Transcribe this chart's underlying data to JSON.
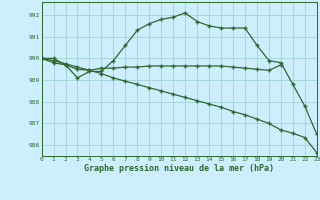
{
  "line1": {
    "x": [
      0,
      1,
      2,
      3,
      4,
      5,
      6,
      7,
      8,
      9,
      10,
      11,
      12,
      13,
      14,
      15,
      16,
      17,
      18,
      19,
      20,
      21,
      22,
      23
    ],
    "y": [
      990.0,
      990.0,
      989.7,
      989.1,
      989.4,
      989.4,
      989.9,
      990.6,
      991.3,
      991.6,
      991.8,
      991.9,
      992.1,
      991.7,
      991.5,
      991.4,
      991.4,
      991.4,
      990.6,
      989.9,
      989.8,
      988.8,
      987.8,
      986.5
    ]
  },
  "line2": {
    "x": [
      0,
      1,
      2,
      3,
      4,
      5,
      6,
      7,
      8,
      9,
      10,
      11,
      12,
      13,
      14,
      15,
      16,
      17,
      18,
      19,
      20
    ],
    "y": [
      990.0,
      989.8,
      989.7,
      989.5,
      989.45,
      989.55,
      989.55,
      989.6,
      989.6,
      989.65,
      989.65,
      989.65,
      989.65,
      989.65,
      989.65,
      989.65,
      989.6,
      989.55,
      989.5,
      989.45,
      989.7
    ]
  },
  "line3": {
    "x": [
      0,
      1,
      2,
      3,
      4,
      5,
      6,
      7,
      8,
      9,
      10,
      11,
      12,
      13,
      14,
      15,
      16,
      17,
      18,
      19,
      20,
      21,
      22,
      23
    ],
    "y": [
      990.0,
      989.9,
      989.75,
      989.6,
      989.45,
      989.3,
      989.1,
      988.95,
      988.8,
      988.65,
      988.5,
      988.35,
      988.2,
      988.05,
      987.9,
      987.75,
      987.55,
      987.4,
      987.2,
      987.0,
      986.7,
      986.55,
      986.35,
      985.65
    ]
  },
  "line_color": "#2d6a2d",
  "bg_color": "#cceeff",
  "grid_color": "#99cccc",
  "ylabel_vals": [
    986,
    987,
    988,
    989,
    990,
    991,
    992
  ],
  "xlabel_vals": [
    0,
    1,
    2,
    3,
    4,
    5,
    6,
    7,
    8,
    9,
    10,
    11,
    12,
    13,
    14,
    15,
    16,
    17,
    18,
    19,
    20,
    21,
    22,
    23
  ],
  "xlim": [
    0,
    23
  ],
  "ylim": [
    985.5,
    992.6
  ],
  "xlabel": "Graphe pression niveau de la mer (hPa)",
  "marker": "+"
}
